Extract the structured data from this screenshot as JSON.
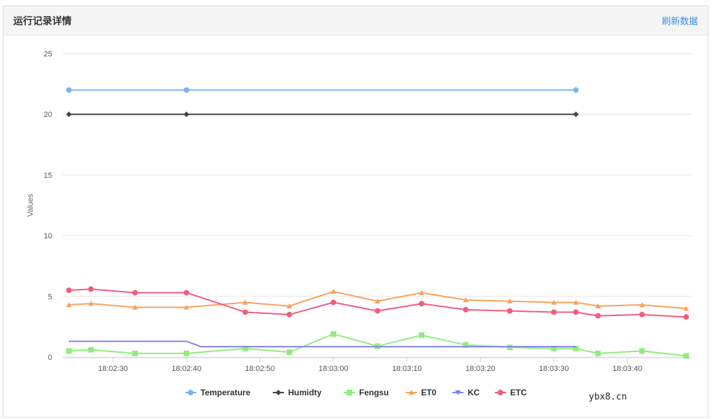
{
  "panel": {
    "title": "运行记录详情",
    "refresh_label": "刷新数据"
  },
  "watermark": "ybx8.cn",
  "chart_data": {
    "type": "line",
    "title": "",
    "xlabel": "",
    "ylabel": "Values",
    "ylim": [
      0,
      25
    ],
    "yticks": [
      0,
      5,
      10,
      15,
      20,
      25
    ],
    "xlim": [
      "18:02:24",
      "18:03:48"
    ],
    "xticks": [
      "18:02:30",
      "18:02:40",
      "18:02:50",
      "18:03:00",
      "18:03:10",
      "18:03:20",
      "18:03:30",
      "18:03:40"
    ],
    "grid": true,
    "legend_position": "bottom",
    "series": [
      {
        "name": "Temperature",
        "color": "#7cb5ec",
        "marker": "circle",
        "x": [
          "18:02:24",
          "18:02:40",
          "18:03:33"
        ],
        "values": [
          22,
          22,
          22
        ]
      },
      {
        "name": "Humidty",
        "color": "#434348",
        "marker": "diamond",
        "x": [
          "18:02:24",
          "18:02:40",
          "18:03:33"
        ],
        "values": [
          20,
          20,
          20
        ]
      },
      {
        "name": "Fengsu",
        "color": "#90ed7d",
        "marker": "square",
        "x": [
          "18:02:24",
          "18:02:27",
          "18:02:33",
          "18:02:40",
          "18:02:48",
          "18:02:54",
          "18:03:00",
          "18:03:06",
          "18:03:12",
          "18:03:18",
          "18:03:24",
          "18:03:30",
          "18:03:33",
          "18:03:36",
          "18:03:42",
          "18:03:48"
        ],
        "values": [
          0.5,
          0.6,
          0.3,
          0.3,
          0.7,
          0.4,
          1.9,
          0.9,
          1.8,
          1.0,
          0.8,
          0.7,
          0.7,
          0.3,
          0.5,
          0.1
        ]
      },
      {
        "name": "ET0",
        "color": "#f7a35c",
        "marker": "triangle",
        "x": [
          "18:02:24",
          "18:02:27",
          "18:02:33",
          "18:02:40",
          "18:02:48",
          "18:02:54",
          "18:03:00",
          "18:03:06",
          "18:03:12",
          "18:03:18",
          "18:03:24",
          "18:03:30",
          "18:03:33",
          "18:03:36",
          "18:03:42",
          "18:03:48"
        ],
        "values": [
          4.3,
          4.4,
          4.1,
          4.1,
          4.5,
          4.2,
          5.4,
          4.6,
          5.3,
          4.7,
          4.6,
          4.5,
          4.5,
          4.2,
          4.3,
          4.0
        ]
      },
      {
        "name": "KC",
        "color": "#8085e9",
        "marker": "triangle-down",
        "x": [
          "18:02:24",
          "18:02:40",
          "18:02:42",
          "18:03:33"
        ],
        "values": [
          1.3,
          1.3,
          0.85,
          0.85
        ]
      },
      {
        "name": "ETC",
        "color": "#f15c80",
        "marker": "circle",
        "x": [
          "18:02:24",
          "18:02:27",
          "18:02:33",
          "18:02:40",
          "18:02:48",
          "18:02:54",
          "18:03:00",
          "18:03:06",
          "18:03:12",
          "18:03:18",
          "18:03:24",
          "18:03:30",
          "18:03:33",
          "18:03:36",
          "18:03:42",
          "18:03:48"
        ],
        "values": [
          5.5,
          5.6,
          5.3,
          5.3,
          3.7,
          3.5,
          4.5,
          3.8,
          4.4,
          3.9,
          3.8,
          3.7,
          3.7,
          3.4,
          3.5,
          3.3
        ]
      }
    ]
  }
}
